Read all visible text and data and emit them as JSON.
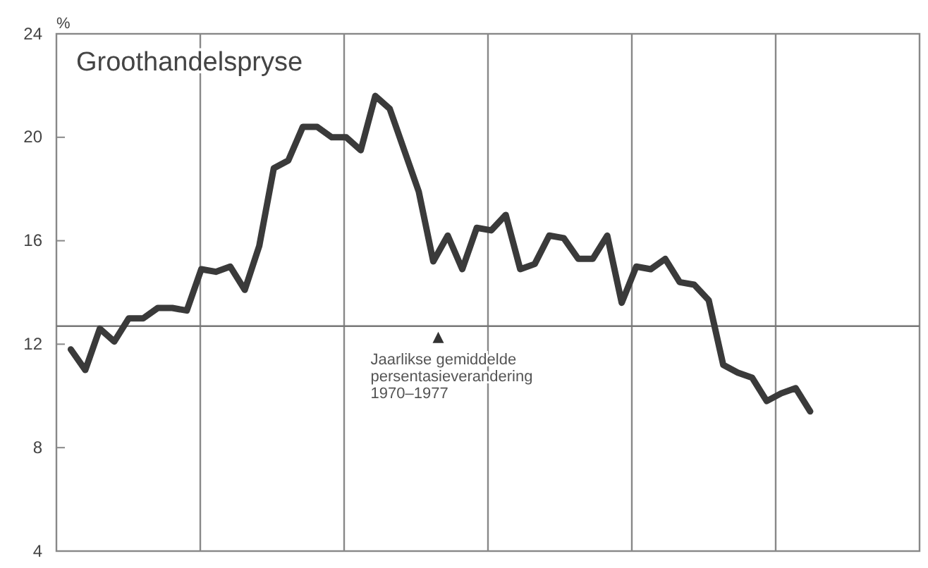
{
  "chart_data": {
    "type": "line",
    "title": "Groothandelspryse",
    "ylabel": "%",
    "categories": [
      null,
      null,
      null,
      null,
      null,
      null,
      null,
      null,
      null,
      null,
      null,
      null,
      null,
      null,
      null,
      null,
      null,
      null,
      null,
      null,
      null,
      null,
      null,
      null,
      null,
      null,
      null,
      null,
      null,
      null,
      null,
      null,
      null,
      null,
      null,
      null,
      null,
      null,
      null,
      null,
      null,
      null,
      null,
      null,
      null,
      null,
      null,
      null,
      null,
      null,
      null,
      null
    ],
    "series": [
      {
        "color": "#3a3a3a",
        "values": [
          11.8,
          11.0,
          12.6,
          12.1,
          13.0,
          13.0,
          13.4,
          13.4,
          13.3,
          14.9,
          14.8,
          15.0,
          14.1,
          15.8,
          18.8,
          19.1,
          20.4,
          20.4,
          20.0,
          20.0,
          19.5,
          21.6,
          21.1,
          19.5,
          17.9,
          15.2,
          16.2,
          14.9,
          16.5,
          16.4,
          17.0,
          14.9,
          15.1,
          16.2,
          16.1,
          15.3,
          15.3,
          16.2,
          13.6,
          15.0,
          14.9,
          15.3,
          14.4,
          14.3,
          13.7,
          11.2,
          10.9,
          10.7,
          9.8,
          10.1,
          10.3,
          9.4
        ]
      }
    ],
    "ylim": [
      4,
      24
    ],
    "yticks": [
      4,
      8,
      12,
      16,
      20,
      24
    ],
    "tick_labels": "y",
    "marker": "none",
    "line_style": "solid",
    "ref_lines": [
      {
        "axis": "y",
        "value": 12.7,
        "label": "Jaarlikse gemiddelde persentasieverandering 1970–1977",
        "color": "#777777"
      }
    ]
  }
}
